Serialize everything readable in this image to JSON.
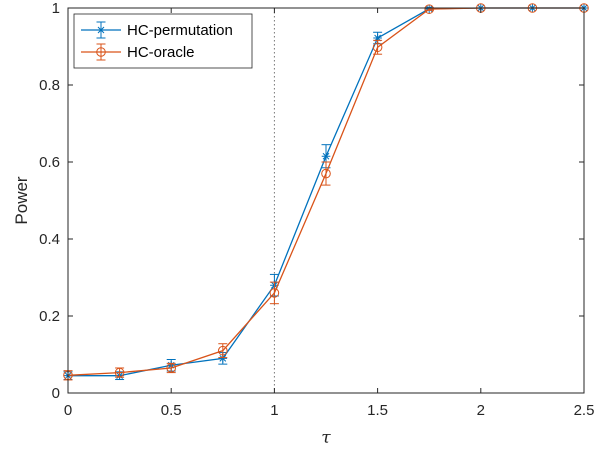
{
  "chart_data": {
    "type": "line",
    "title": "",
    "xlabel": "τ",
    "ylabel": "Power",
    "xlim": [
      0,
      2.5
    ],
    "ylim": [
      0,
      1
    ],
    "xticks": [
      0,
      0.5,
      1,
      1.5,
      2,
      2.5
    ],
    "xtick_labels": [
      "0",
      "0.5",
      "1",
      "1.5",
      "2",
      "2.5"
    ],
    "yticks": [
      0,
      0.2,
      0.4,
      0.6,
      0.8,
      1
    ],
    "ytick_labels": [
      "0",
      "0.2",
      "0.4",
      "0.6",
      "0.8",
      "1"
    ],
    "grid": false,
    "legend_position": "top-left",
    "reference_line": {
      "x": 1,
      "style": "dotted"
    },
    "x": [
      0,
      0.25,
      0.5,
      0.75,
      1,
      1.25,
      1.5,
      1.75,
      2,
      2.25,
      2.5
    ],
    "series": [
      {
        "name": "HC-permutation",
        "color": "#0072BD",
        "marker": "star",
        "values": [
          0.045,
          0.045,
          0.072,
          0.09,
          0.28,
          0.615,
          0.922,
          0.998,
          1,
          1,
          1
        ],
        "errors": [
          0.01,
          0.01,
          0.015,
          0.015,
          0.028,
          0.03,
          0.015,
          0.003,
          0,
          0,
          0
        ]
      },
      {
        "name": "HC-oracle",
        "color": "#D95319",
        "marker": "circle",
        "values": [
          0.046,
          0.053,
          0.065,
          0.11,
          0.26,
          0.57,
          0.898,
          0.997,
          1,
          1,
          1
        ],
        "errors": [
          0.012,
          0.012,
          0.012,
          0.018,
          0.028,
          0.03,
          0.018,
          0.003,
          0,
          0,
          0
        ]
      }
    ]
  }
}
